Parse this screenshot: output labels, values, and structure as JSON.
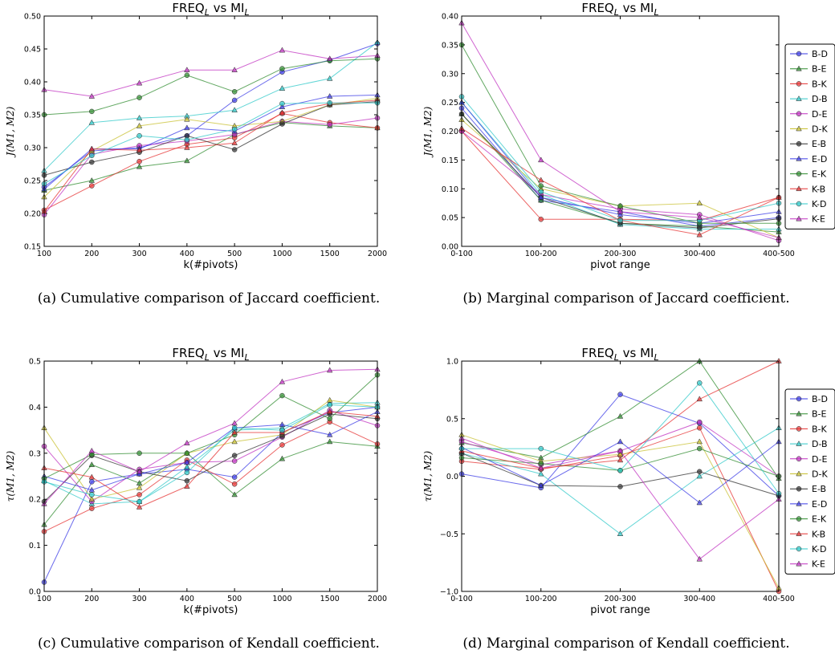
{
  "colors": {
    "B-D": "#3a3ae6",
    "B-E": "#2e8b2e",
    "B-K": "#e63030",
    "D-B": "#2ec8c8",
    "D-E": "#c030c0",
    "D-K": "#c8c030",
    "E-B": "#303030",
    "E-D": "#3a3ae6",
    "E-K": "#2e8b2e",
    "K-B": "#e63030",
    "K-D": "#2ec8c8",
    "K-E": "#c030c0"
  },
  "markers": {
    "B-D": "circle",
    "B-E": "triangle",
    "B-K": "circle",
    "D-B": "triangle",
    "D-E": "circle",
    "D-K": "triangle",
    "E-B": "circle",
    "E-D": "triangle",
    "E-K": "circle",
    "K-B": "triangle",
    "K-D": "circle",
    "K-E": "triangle"
  },
  "captions": {
    "a": "(a) Cumulative comparison of Jaccard coefficient.",
    "b": "(b) Marginal comparison of Jaccard coefficient.",
    "c": "(c) Cumulative comparison of Kendall coefficient.",
    "d": "(d) Marginal comparison of Kendall coefficient."
  },
  "chart_data": [
    {
      "id": "a",
      "type": "line",
      "title_main": "FREQ",
      "title_sub": "L",
      "title_mid": " vs MI",
      "title_sub2": "L",
      "xlabel": "k(#pivots)",
      "ylabel": "J(M1, M2)",
      "categories": [
        "100",
        "200",
        "300",
        "400",
        "500",
        "1000",
        "1500",
        "2000"
      ],
      "ylim": [
        0.15,
        0.5
      ],
      "yticks": [
        "0.15",
        "0.20",
        "0.25",
        "0.30",
        "0.35",
        "0.40",
        "0.45",
        "0.50"
      ],
      "ytick_values": [
        0.15,
        0.2,
        0.25,
        0.3,
        0.35,
        0.4,
        0.45,
        0.5
      ],
      "legend": false,
      "series": [
        {
          "name": "B-D",
          "values": [
            0.24,
            0.295,
            0.3,
            0.318,
            0.372,
            0.415,
            0.433,
            0.458
          ]
        },
        {
          "name": "B-E",
          "values": [
            0.235,
            0.25,
            0.271,
            0.28,
            0.32,
            0.338,
            0.333,
            0.33
          ]
        },
        {
          "name": "B-K",
          "values": [
            0.205,
            0.242,
            0.279,
            0.305,
            0.315,
            0.352,
            0.338,
            0.33
          ]
        },
        {
          "name": "D-B",
          "values": [
            0.265,
            0.338,
            0.345,
            0.348,
            0.357,
            0.39,
            0.405,
            0.46
          ]
        },
        {
          "name": "D-E",
          "values": [
            0.198,
            0.29,
            0.303,
            0.31,
            0.32,
            0.34,
            0.335,
            0.345
          ]
        },
        {
          "name": "D-K",
          "values": [
            0.225,
            0.295,
            0.333,
            0.343,
            0.333,
            0.34,
            0.365,
            0.375
          ]
        },
        {
          "name": "E-B",
          "values": [
            0.258,
            0.278,
            0.293,
            0.318,
            0.297,
            0.336,
            0.365,
            0.37
          ]
        },
        {
          "name": "E-D",
          "values": [
            0.237,
            0.298,
            0.298,
            0.33,
            0.325,
            0.362,
            0.378,
            0.38
          ]
        },
        {
          "name": "E-K",
          "values": [
            0.35,
            0.355,
            0.376,
            0.41,
            0.385,
            0.42,
            0.432,
            0.435
          ]
        },
        {
          "name": "K-B",
          "values": [
            0.203,
            0.298,
            0.296,
            0.3,
            0.307,
            0.353,
            0.367,
            0.372
          ]
        },
        {
          "name": "K-D",
          "values": [
            0.245,
            0.288,
            0.318,
            0.312,
            0.328,
            0.367,
            0.368,
            0.368
          ]
        },
        {
          "name": "K-E",
          "values": [
            0.388,
            0.378,
            0.398,
            0.418,
            0.418,
            0.448,
            0.435,
            0.44
          ]
        }
      ]
    },
    {
      "id": "b",
      "type": "line",
      "title_main": "FREQ",
      "title_sub": "L",
      "title_mid": " vs MI",
      "title_sub2": "L",
      "xlabel": "pivot range",
      "ylabel": "J(M1, M2)",
      "categories": [
        "0-100",
        "100-200",
        "200-300",
        "300-400",
        "400-500"
      ],
      "ylim": [
        0.0,
        0.4
      ],
      "yticks": [
        "0.00",
        "0.05",
        "0.10",
        "0.15",
        "0.20",
        "0.25",
        "0.30",
        "0.35",
        "0.40"
      ],
      "ytick_values": [
        0,
        0.05,
        0.1,
        0.15,
        0.2,
        0.25,
        0.3,
        0.35,
        0.4
      ],
      "legend": true,
      "series": [
        {
          "name": "B-D",
          "values": [
            0.24,
            0.08,
            0.06,
            0.035,
            0.05
          ]
        },
        {
          "name": "B-E",
          "values": [
            0.23,
            0.08,
            0.04,
            0.035,
            0.025
          ]
        },
        {
          "name": "B-K",
          "values": [
            0.2,
            0.047,
            0.047,
            0.045,
            0.085
          ]
        },
        {
          "name": "D-B",
          "values": [
            0.25,
            0.09,
            0.038,
            0.03,
            0.03
          ]
        },
        {
          "name": "D-E",
          "values": [
            0.2,
            0.09,
            0.065,
            0.055,
            0.01
          ]
        },
        {
          "name": "D-K",
          "values": [
            0.22,
            0.1,
            0.07,
            0.075,
            0.015
          ]
        },
        {
          "name": "E-B",
          "values": [
            0.23,
            0.085,
            0.04,
            0.032,
            0.048
          ]
        },
        {
          "name": "E-D",
          "values": [
            0.25,
            0.085,
            0.055,
            0.04,
            0.06
          ]
        },
        {
          "name": "E-K",
          "values": [
            0.35,
            0.105,
            0.07,
            0.04,
            0.04
          ]
        },
        {
          "name": "K-B",
          "values": [
            0.205,
            0.115,
            0.045,
            0.02,
            0.085
          ]
        },
        {
          "name": "K-D",
          "values": [
            0.26,
            0.095,
            0.045,
            0.045,
            0.075
          ]
        },
        {
          "name": "K-E",
          "values": [
            0.388,
            0.15,
            0.06,
            0.05,
            0.015
          ]
        }
      ]
    },
    {
      "id": "c",
      "type": "line",
      "title_main": "FREQ",
      "title_sub": "L",
      "title_mid": " vs MI",
      "title_sub2": "L",
      "xlabel": "k(#pivots)",
      "ylabel": "τ(M1, M2)",
      "categories": [
        "100",
        "200",
        "300",
        "400",
        "500",
        "1000",
        "1500",
        "2000"
      ],
      "ylim": [
        0.0,
        0.5
      ],
      "yticks": [
        "0.0",
        "0.1",
        "0.2",
        "0.3",
        "0.4",
        "0.5"
      ],
      "ytick_values": [
        0,
        0.1,
        0.2,
        0.3,
        0.4,
        0.5
      ],
      "legend": false,
      "series": [
        {
          "name": "B-D",
          "values": [
            0.02,
            0.238,
            0.255,
            0.265,
            0.248,
            0.345,
            0.388,
            0.4
          ]
        },
        {
          "name": "B-E",
          "values": [
            0.145,
            0.275,
            0.235,
            0.3,
            0.21,
            0.288,
            0.325,
            0.315
          ]
        },
        {
          "name": "B-K",
          "values": [
            0.13,
            0.18,
            0.21,
            0.285,
            0.233,
            0.318,
            0.368,
            0.32
          ]
        },
        {
          "name": "D-B",
          "values": [
            0.24,
            0.19,
            0.195,
            0.27,
            0.35,
            0.355,
            0.408,
            0.41
          ]
        },
        {
          "name": "D-E",
          "values": [
            0.315,
            0.195,
            0.265,
            0.28,
            0.283,
            0.335,
            0.393,
            0.36
          ]
        },
        {
          "name": "D-K",
          "values": [
            0.355,
            0.2,
            0.225,
            0.3,
            0.325,
            0.34,
            0.415,
            0.4
          ]
        },
        {
          "name": "E-B",
          "values": [
            0.195,
            0.295,
            0.26,
            0.24,
            0.295,
            0.337,
            0.385,
            0.375
          ]
        },
        {
          "name": "E-D",
          "values": [
            0.25,
            0.22,
            0.255,
            0.28,
            0.355,
            0.362,
            0.34,
            0.39
          ]
        },
        {
          "name": "E-K",
          "values": [
            0.245,
            0.297,
            0.3,
            0.3,
            0.34,
            0.425,
            0.375,
            0.47
          ]
        },
        {
          "name": "K-B",
          "values": [
            0.268,
            0.248,
            0.183,
            0.228,
            0.345,
            0.345,
            0.39,
            0.38
          ]
        },
        {
          "name": "K-D",
          "values": [
            0.238,
            0.21,
            0.195,
            0.258,
            0.355,
            0.35,
            0.405,
            0.4
          ]
        },
        {
          "name": "K-E",
          "values": [
            0.19,
            0.305,
            0.26,
            0.322,
            0.365,
            0.455,
            0.48,
            0.482
          ]
        }
      ]
    },
    {
      "id": "d",
      "type": "line",
      "title_main": "FREQ",
      "title_sub": "L",
      "title_mid": " vs MI",
      "title_sub2": "L",
      "xlabel": "pivot range",
      "ylabel": "τ(M1, M2)",
      "categories": [
        "0-100",
        "100-200",
        "200-300",
        "300-400",
        "400-500"
      ],
      "ylim": [
        -1.0,
        1.0
      ],
      "yticks": [
        "−1.0",
        "−0.5",
        "0.0",
        "0.5",
        "1.0"
      ],
      "ytick_values": [
        -1,
        -0.5,
        0,
        0.5,
        1
      ],
      "legend": true,
      "series": [
        {
          "name": "B-D",
          "values": [
            0.02,
            -0.1,
            0.71,
            0.46,
            -0.17
          ]
        },
        {
          "name": "B-E",
          "values": [
            0.29,
            0.16,
            0.52,
            1.0,
            -0.02
          ]
        },
        {
          "name": "B-K",
          "values": [
            0.13,
            0.06,
            0.18,
            0.42,
            -1.0
          ]
        },
        {
          "name": "D-B",
          "values": [
            0.2,
            0.02,
            -0.5,
            0.0,
            0.42
          ]
        },
        {
          "name": "D-E",
          "values": [
            0.3,
            0.1,
            0.22,
            0.47,
            0.0
          ]
        },
        {
          "name": "D-K",
          "values": [
            0.36,
            0.13,
            0.19,
            0.3,
            -0.97
          ]
        },
        {
          "name": "E-B",
          "values": [
            0.2,
            -0.08,
            -0.09,
            0.04,
            -0.17
          ]
        },
        {
          "name": "E-D",
          "values": [
            0.25,
            -0.08,
            0.3,
            -0.23,
            0.3
          ]
        },
        {
          "name": "E-K",
          "values": [
            0.16,
            0.11,
            0.05,
            0.24,
            0.0
          ]
        },
        {
          "name": "K-B",
          "values": [
            0.22,
            0.07,
            0.14,
            0.67,
            1.0
          ]
        },
        {
          "name": "K-D",
          "values": [
            0.24,
            0.24,
            0.05,
            0.81,
            -0.15
          ]
        },
        {
          "name": "K-E",
          "values": [
            0.33,
            0.07,
            0.22,
            -0.72,
            -0.2
          ]
        }
      ]
    }
  ]
}
